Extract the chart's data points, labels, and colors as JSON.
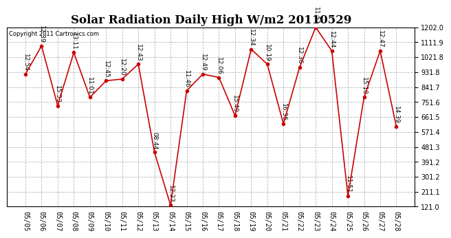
{
  "title": "Solar Radiation Daily High W/m2 20110529",
  "copyright": "Copyright 2011 Cartronics.com",
  "dates": [
    "05/05",
    "05/06",
    "05/07",
    "05/08",
    "05/09",
    "05/10",
    "05/11",
    "05/12",
    "05/13",
    "05/14",
    "05/15",
    "05/16",
    "05/17",
    "05/18",
    "05/19",
    "05/20",
    "05/21",
    "05/22",
    "05/23",
    "05/24",
    "05/25",
    "05/26",
    "05/27",
    "05/28"
  ],
  "values": [
    920,
    1090,
    730,
    1050,
    780,
    880,
    890,
    980,
    450,
    130,
    820,
    920,
    900,
    670,
    1070,
    980,
    620,
    960,
    1202,
    1060,
    185,
    780,
    1060,
    605
  ],
  "times": [
    "12:54",
    "12:39",
    "15:53",
    "13:11",
    "11:01",
    "12:45",
    "12:20",
    "12:43",
    "08:44",
    "12:23",
    "11:46",
    "12:49",
    "12:06",
    "15:49",
    "12:34",
    "10:19",
    "16:36",
    "12:36",
    "11:51",
    "12:44",
    "11:51",
    "15:10",
    "12:47",
    "14:39"
  ],
  "ylim_min": 121.0,
  "ylim_max": 1202.0,
  "yticks": [
    121.0,
    211.1,
    301.2,
    391.2,
    481.3,
    571.4,
    661.5,
    751.6,
    841.7,
    931.8,
    1021.8,
    1111.9,
    1202.0
  ],
  "line_color": "#cc0000",
  "marker_color": "#cc0000",
  "grid_color": "#aaaaaa",
  "bg_color": "#ffffff",
  "title_fontsize": 12,
  "annot_fontsize": 6.5,
  "tick_fontsize": 7.0,
  "copyright_fontsize": 6.0
}
